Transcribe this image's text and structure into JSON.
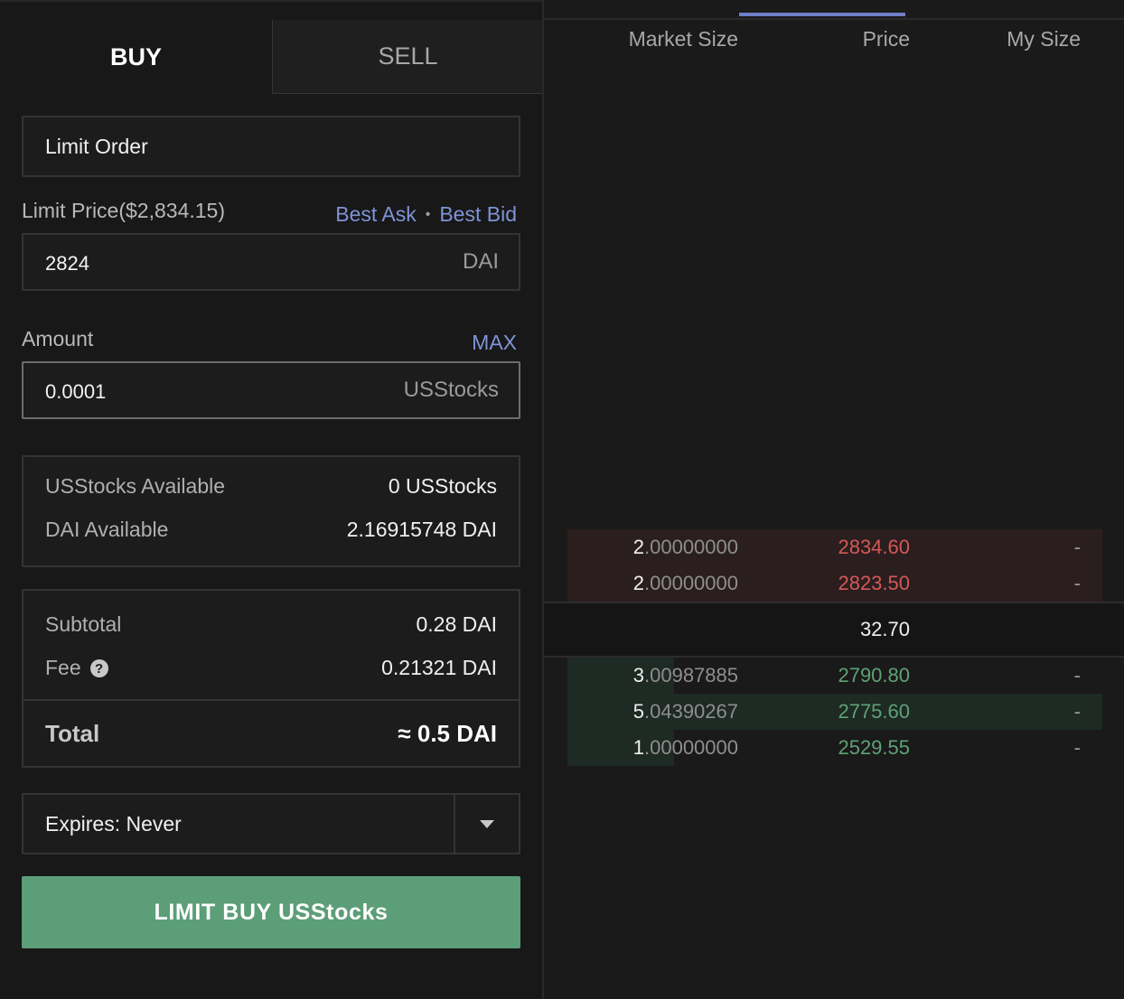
{
  "tabs": {
    "buy": "BUY",
    "sell": "SELL"
  },
  "order_type": "Limit Order",
  "limit_price": {
    "label": "Limit Price($2,834.15)",
    "best_ask": "Best Ask",
    "separator": "•",
    "best_bid": "Best Bid",
    "value": "2824",
    "unit": "DAI"
  },
  "amount": {
    "label": "Amount",
    "max": "MAX",
    "value": "0.0001",
    "unit": "USStocks"
  },
  "balances": [
    {
      "label": "USStocks Available",
      "value": "0 USStocks"
    },
    {
      "label": "DAI Available",
      "value": "2.16915748 DAI"
    }
  ],
  "summary": {
    "subtotal_label": "Subtotal",
    "subtotal_value": "0.28 DAI",
    "fee_label": "Fee",
    "fee_help": "?",
    "fee_value": "0.21321 DAI",
    "total_label": "Total",
    "total_value": "≈ 0.5 DAI"
  },
  "expires": {
    "label": "Expires: Never"
  },
  "submit_label": "LIMIT BUY USStocks",
  "order_book": {
    "headers": {
      "market_size": "Market Size",
      "price": "Price",
      "my_size": "My Size"
    },
    "asks": [
      {
        "size_int": "2",
        "size_dec": ".00000000",
        "price": "2834.60",
        "my_size": "-",
        "depth": 1.0
      },
      {
        "size_int": "2",
        "size_dec": ".00000000",
        "price": "2823.50",
        "my_size": "-",
        "depth": 1.0
      }
    ],
    "spread": "32.70",
    "bids": [
      {
        "size_int": "3",
        "size_dec": ".00987885",
        "price": "2790.80",
        "my_size": "-",
        "depth": 0.2
      },
      {
        "size_int": "5",
        "size_dec": ".04390267",
        "price": "2775.60",
        "my_size": "-",
        "depth": 1.0
      },
      {
        "size_int": "1",
        "size_dec": ".00000000",
        "price": "2529.55",
        "my_size": "-",
        "depth": 0.2
      }
    ]
  },
  "colors": {
    "accent": "#7f93d6",
    "ask": "#d45858",
    "bid": "#5fa178",
    "buy_button": "#5c9e78"
  }
}
